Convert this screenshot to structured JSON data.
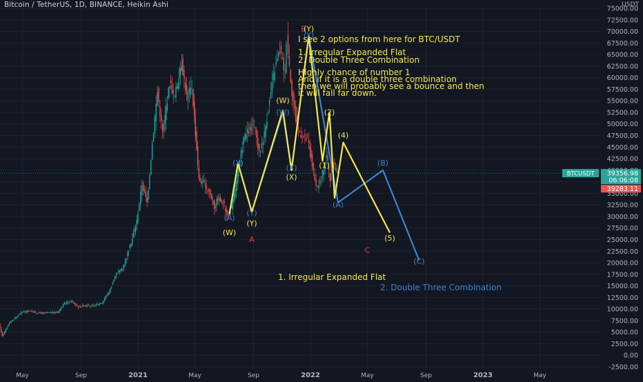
{
  "header": {
    "title": "Bitcoin / TetherUS, 1D, BINANCE, Heikin Ashi",
    "pair": "USDT"
  },
  "colors": {
    "background": "#131722",
    "grid": "#1e222d",
    "axis_text": "#b2b5be",
    "up": "#26a69a",
    "down": "#ef5350",
    "yellow": "#f5e84a",
    "blue": "#3a83d1",
    "red_label": "#f23645",
    "price_tag": "#26a69a",
    "low_tag": "#ef5350"
  },
  "chart_data": {
    "type": "candlestick",
    "y_axis": {
      "ylim": [
        -2500,
        75000
      ],
      "ticks": [
        "75000.00",
        "72500.00",
        "70000.00",
        "67500.00",
        "65000.00",
        "62500.00",
        "60000.00",
        "57500.00",
        "55000.00",
        "52500.00",
        "50000.00",
        "47500.00",
        "45000.00",
        "42500.00",
        "40000.00",
        "37500.00",
        "35000.00",
        "32500.00",
        "30000.00",
        "27500.00",
        "25000.00",
        "22500.00",
        "20000.00",
        "17500.00",
        "15000.00",
        "12500.00",
        "10000.00",
        "7500.00",
        "5000.00",
        "2500.00",
        "0.00",
        "-2500.00"
      ]
    },
    "x_axis": {
      "ticks": [
        "May",
        "Sep",
        "2021",
        "May",
        "Sep",
        "2022",
        "May",
        "Sep",
        "2023",
        "May"
      ]
    },
    "price_tags": {
      "symbol": "BTCUSDT",
      "last_price": "39356.98",
      "countdown": "06:06:08",
      "low_price": "39283.11"
    },
    "price_path": [
      [
        2020.2,
        6800
      ],
      [
        2020.22,
        4200
      ],
      [
        2020.26,
        7000
      ],
      [
        2020.3,
        8200
      ],
      [
        2020.33,
        9300
      ],
      [
        2020.38,
        9600
      ],
      [
        2020.42,
        9200
      ],
      [
        2020.46,
        9100
      ],
      [
        2020.5,
        9200
      ],
      [
        2020.54,
        9300
      ],
      [
        2020.58,
        11200
      ],
      [
        2020.62,
        11700
      ],
      [
        2020.66,
        10500
      ],
      [
        2020.7,
        10800
      ],
      [
        2020.75,
        10600
      ],
      [
        2020.8,
        11500
      ],
      [
        2020.84,
        13800
      ],
      [
        2020.88,
        17500
      ],
      [
        2020.92,
        19000
      ],
      [
        2020.96,
        23500
      ],
      [
        2021.0,
        29000
      ],
      [
        2021.03,
        37000
      ],
      [
        2021.06,
        33000
      ],
      [
        2021.09,
        46000
      ],
      [
        2021.12,
        57000
      ],
      [
        2021.15,
        48000
      ],
      [
        2021.19,
        59000
      ],
      [
        2021.22,
        56000
      ],
      [
        2021.26,
        63500
      ],
      [
        2021.29,
        56000
      ],
      [
        2021.32,
        58000
      ],
      [
        2021.36,
        38000
      ],
      [
        2021.39,
        37000
      ],
      [
        2021.42,
        35500
      ],
      [
        2021.45,
        32000
      ],
      [
        2021.47,
        34000
      ],
      [
        2021.5,
        33000
      ],
      [
        2021.53,
        30000
      ],
      [
        2021.55,
        32000
      ],
      [
        2021.59,
        40000
      ],
      [
        2021.62,
        47000
      ],
      [
        2021.65,
        48500
      ],
      [
        2021.68,
        50000
      ],
      [
        2021.71,
        43500
      ],
      [
        2021.74,
        48000
      ],
      [
        2021.77,
        55000
      ],
      [
        2021.8,
        62000
      ],
      [
        2021.83,
        66000
      ],
      [
        2021.86,
        61000
      ],
      [
        2021.87,
        68500
      ],
      [
        2021.9,
        57000
      ],
      [
        2021.93,
        49000
      ],
      [
        2021.96,
        47500
      ],
      [
        2021.99,
        46500
      ],
      [
        2022.01,
        43000
      ],
      [
        2022.04,
        36000
      ],
      [
        2022.07,
        38000
      ],
      [
        2022.1,
        43500
      ],
      [
        2022.12,
        38000
      ],
      [
        2022.14,
        42000
      ],
      [
        2022.16,
        39283
      ]
    ],
    "wave_labels": [
      {
        "text": "(W)",
        "color": "yellow",
        "x": 2021.53,
        "y": 26000
      },
      {
        "text": "(Y)",
        "color": "yellow",
        "x": 2021.66,
        "y": 28000
      },
      {
        "text": "A",
        "color": "red",
        "x": 2021.66,
        "y": 24500
      },
      {
        "text": "(W)",
        "color": "yellow",
        "x": 2021.84,
        "y": 54500
      },
      {
        "text": "(X)",
        "color": "yellow",
        "x": 2021.89,
        "y": 38000
      },
      {
        "text": "B",
        "color": "red",
        "x": 2021.96,
        "y": 70000
      },
      {
        "text": "(Y)",
        "color": "yellow",
        "x": 2021.99,
        "y": 70000
      },
      {
        "text": "(1)",
        "color": "yellow",
        "x": 2022.08,
        "y": 40500
      },
      {
        "text": "(2)",
        "color": "yellow",
        "x": 2022.11,
        "y": 52000
      },
      {
        "text": "(4)",
        "color": "yellow",
        "x": 2022.19,
        "y": 47000
      },
      {
        "text": "(5)",
        "color": "yellow",
        "x": 2022.46,
        "y": 24800
      },
      {
        "text": "C",
        "color": "red",
        "x": 2022.33,
        "y": 22200
      },
      {
        "text": "(B)",
        "color": "blue",
        "x": 2022.42,
        "y": 41000
      },
      {
        "text": "(C)",
        "color": "blue",
        "x": 2022.63,
        "y": 19800
      },
      {
        "text": "(A)",
        "color": "blue",
        "x": 2021.53,
        "y": 29200
      },
      {
        "text": "(X)",
        "color": "blue",
        "x": 2021.58,
        "y": 41000
      },
      {
        "text": "(Y)",
        "color": "blue",
        "x": 2021.66,
        "y": 30200
      },
      {
        "text": "(W)",
        "color": "blue",
        "x": 2021.84,
        "y": 52000
      },
      {
        "text": "(X)",
        "color": "blue",
        "x": 2021.89,
        "y": 40000
      },
      {
        "text": "(Y)",
        "color": "blue",
        "x": 2021.99,
        "y": 68600
      },
      {
        "text": "(A)",
        "color": "blue",
        "x": 2022.16,
        "y": 32000
      }
    ],
    "yellow_path": [
      [
        2021.53,
        30500
      ],
      [
        2021.58,
        41500
      ],
      [
        2021.66,
        31000
      ],
      [
        2021.84,
        53000
      ],
      [
        2021.89,
        40000
      ],
      [
        2021.99,
        69000
      ],
      [
        2022.07,
        42000
      ],
      [
        2022.11,
        52500
      ],
      [
        2022.14,
        34000
      ],
      [
        2022.19,
        46000
      ],
      [
        2022.46,
        26500
      ]
    ],
    "blue_path": [
      [
        2021.53,
        30500
      ],
      [
        2021.58,
        41500
      ],
      [
        2021.66,
        31000
      ],
      [
        2021.84,
        52500
      ],
      [
        2021.89,
        40000
      ],
      [
        2021.99,
        69000
      ],
      [
        2022.16,
        33000
      ],
      [
        2022.42,
        40000
      ],
      [
        2022.63,
        20500
      ]
    ],
    "annotations": [
      "I see 2 options from here for BTC/USDT",
      "1. Irregular Expanded Flat",
      "2. Double Three Combination",
      "HIghly chance of number 1",
      "And if it is a double three combination",
      "then we will probably see a bounce and then",
      "it will fall far down.",
      "1. Irregular Expanded Flat",
      "2. Double Three Combination"
    ]
  }
}
